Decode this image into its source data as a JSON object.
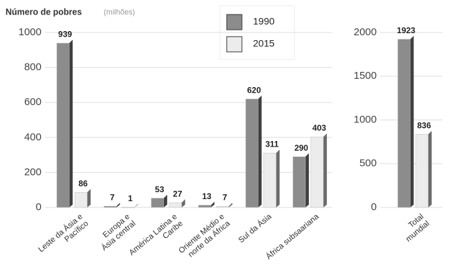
{
  "chart_data": [
    {
      "type": "bar",
      "title": "Número de pobres",
      "subtitle": "(milhões)",
      "categories": [
        [
          "Leste da Ásia e",
          "Pacífico"
        ],
        [
          "Europa e",
          "Ásia central"
        ],
        [
          "América Latina e",
          "Caribe"
        ],
        [
          "Oriente Médio e",
          "norte da África"
        ],
        [
          "Sul da Ásia"
        ],
        [
          "África subsaariana"
        ]
      ],
      "series": [
        {
          "name": "1990",
          "color": "#8c8c8c",
          "values": [
            939,
            7,
            53,
            13,
            620,
            290
          ]
        },
        {
          "name": "2015",
          "color": "#ececec",
          "values": [
            86,
            1,
            27,
            7,
            311,
            403
          ]
        }
      ],
      "ylim": [
        0,
        1000
      ],
      "yticks": [
        0,
        200,
        400,
        600,
        800,
        1000
      ],
      "grid": true,
      "legend": "top"
    },
    {
      "type": "bar",
      "categories": [
        [
          "Total",
          "mundial"
        ]
      ],
      "series": [
        {
          "color": "#8c8c8c",
          "values": [
            1923
          ]
        },
        {
          "color": "#ececec",
          "values": [
            836
          ]
        }
      ],
      "ylim": [
        0,
        2000
      ],
      "yticks": [
        0,
        500,
        1000,
        1500,
        2000
      ],
      "grid": true
    }
  ]
}
